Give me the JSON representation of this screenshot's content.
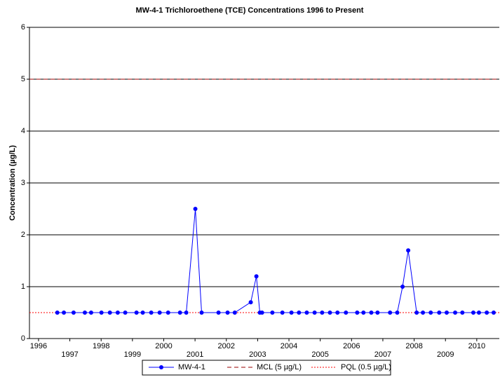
{
  "chart_data": {
    "type": "line",
    "title": "MW-4-1 Trichloroethene (TCE) Concentrations 1996 to Present",
    "y_label": "Concentration (µg/L)",
    "xlim": [
      1995.71,
      2010.72
    ],
    "xticks": [
      1996,
      1997,
      1998,
      1999,
      2000,
      2001,
      2002,
      2003,
      2004,
      2005,
      2006,
      2007,
      2008,
      2009,
      2010
    ],
    "ylim": [
      0,
      6
    ],
    "yticks": [
      0,
      1,
      2,
      3,
      4,
      5,
      6
    ],
    "grid": true,
    "legend": "bottom",
    "series": [
      {
        "name": "MW-4-1",
        "color": "#0000ff",
        "x": [
          1996.6,
          1996.81,
          1997.12,
          1997.48,
          1997.68,
          1998.01,
          1998.28,
          1998.53,
          1998.77,
          1999.13,
          1999.33,
          1999.6,
          1999.87,
          2000.14,
          2000.52,
          2000.72,
          2001.01,
          2001.21,
          2001.75,
          2002.04,
          2002.27,
          2002.78,
          2002.96,
          2003.07,
          2003.14,
          2003.47,
          2003.79,
          2004.08,
          2004.32,
          2004.57,
          2004.82,
          2005.06,
          2005.31,
          2005.55,
          2005.82,
          2006.18,
          2006.38,
          2006.63,
          2006.83,
          2007.23,
          2007.46,
          2007.63,
          2007.81,
          2008.08,
          2008.28,
          2008.53,
          2008.8,
          2009.04,
          2009.31,
          2009.54,
          2009.89,
          2010.07,
          2010.32,
          2010.54
        ],
        "values": [
          0.5,
          0.5,
          0.5,
          0.5,
          0.5,
          0.5,
          0.5,
          0.5,
          0.5,
          0.5,
          0.5,
          0.5,
          0.5,
          0.5,
          0.5,
          0.5,
          2.5,
          0.5,
          0.5,
          0.5,
          0.5,
          0.7,
          1.2,
          0.5,
          0.5,
          0.5,
          0.5,
          0.5,
          0.5,
          0.5,
          0.5,
          0.5,
          0.5,
          0.5,
          0.5,
          0.5,
          0.5,
          0.5,
          0.5,
          0.5,
          0.5,
          1.0,
          1.7,
          0.5,
          0.5,
          0.5,
          0.5,
          0.5,
          0.5,
          0.5,
          0.5,
          0.5,
          0.5,
          0.5
        ]
      }
    ],
    "reference_lines": [
      {
        "name": "MCL (5 µg/L)",
        "value": 5,
        "color": "#990000",
        "dash": "6,4"
      },
      {
        "name": "PQL (0.5 µg/L)",
        "value": 0.5,
        "color": "#ff0000",
        "dash": "2,2"
      }
    ]
  }
}
